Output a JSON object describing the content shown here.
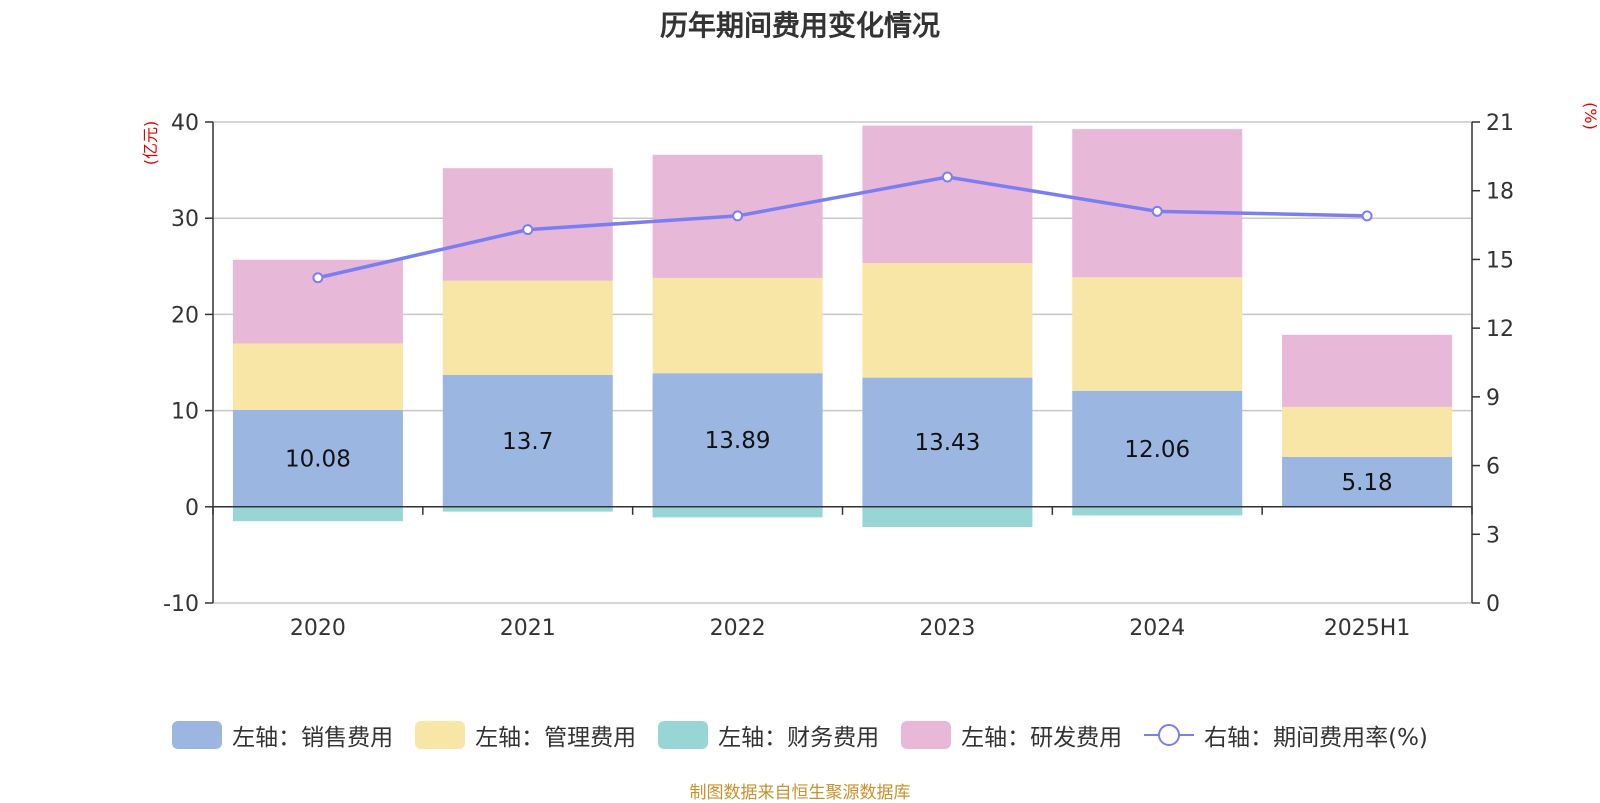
{
  "chart_data": {
    "type": "bar",
    "stacked": true,
    "title": "历年期间费用变化情况",
    "categories": [
      "2020",
      "2021",
      "2022",
      "2023",
      "2024",
      "2025H1"
    ],
    "y_left": {
      "unit_label": "(亿元)",
      "ylim": [
        -10,
        40
      ],
      "ticks": [
        "-10",
        "0",
        "10",
        "20",
        "30",
        "40"
      ]
    },
    "y_right": {
      "unit_label": "(%)",
      "ylim": [
        0,
        21
      ],
      "ticks": [
        "0",
        "3",
        "6",
        "9",
        "12",
        "15",
        "18",
        "21"
      ]
    },
    "grid": true,
    "legend_position": "bottom",
    "series": [
      {
        "name": "左轴：销售费用",
        "axis": "left",
        "color": "#9bb7e1",
        "values": [
          10.08,
          13.7,
          13.89,
          13.43,
          12.06,
          5.18
        ],
        "data_labels": [
          "10.08",
          "13.7",
          "13.89",
          "13.43",
          "12.06",
          "5.18"
        ]
      },
      {
        "name": "左轴：管理费用",
        "axis": "left",
        "color": "#f8e6a6",
        "values": [
          6.9,
          9.8,
          9.9,
          11.9,
          11.8,
          5.2
        ]
      },
      {
        "name": "左轴：财务费用",
        "axis": "left",
        "color": "#98d6d5",
        "values": [
          -1.5,
          -0.5,
          -1.1,
          -2.1,
          -0.9,
          0
        ]
      },
      {
        "name": "左轴：研发费用",
        "axis": "left",
        "color": "#e8b8d9",
        "values": [
          8.7,
          11.7,
          12.8,
          14.3,
          15.4,
          7.5
        ]
      },
      {
        "name": "右轴：期间费用率(%)",
        "axis": "right",
        "type": "line",
        "color": "#7b7ef0",
        "values": [
          14.2,
          16.3,
          16.9,
          18.6,
          17.1,
          16.9
        ]
      }
    ]
  },
  "source_note": "制图数据来自恒生聚源数据库"
}
